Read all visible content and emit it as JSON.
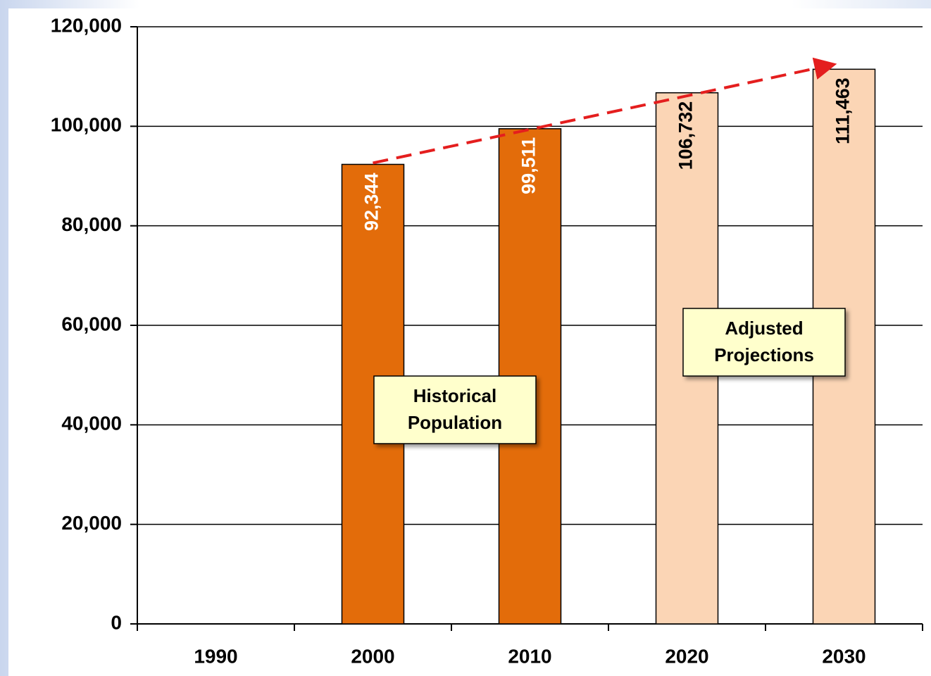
{
  "chart_data": {
    "type": "bar",
    "categories": [
      "1990",
      "2000",
      "2010",
      "2020",
      "2030"
    ],
    "values": [
      null,
      92344,
      99511,
      106732,
      111463
    ],
    "value_labels": [
      null,
      "92,344",
      "99,511",
      "106,732",
      "111,463"
    ],
    "colors": [
      null,
      "#e36c0a",
      "#e36c0a",
      "#fbd5b5",
      "#fbd5b5"
    ],
    "label_colors": [
      null,
      "#ffffff",
      "#ffffff",
      "#000000",
      "#000000"
    ],
    "ylim": [
      0,
      120000
    ],
    "yticks": [
      {
        "value": 0,
        "label": "0"
      },
      {
        "value": 20000,
        "label": "20,000"
      },
      {
        "value": 40000,
        "label": "40,000"
      },
      {
        "value": 60000,
        "label": "60,000"
      },
      {
        "value": 80000,
        "label": "80,000"
      },
      {
        "value": 100000,
        "label": "100,000"
      },
      {
        "value": 120000,
        "label": "120,000"
      }
    ],
    "grid": true,
    "annotations": [
      {
        "lines": [
          "Historical",
          "Population"
        ]
      },
      {
        "lines": [
          "Adjusted",
          "Projections"
        ]
      }
    ],
    "trend_color": "#e41e1e"
  }
}
